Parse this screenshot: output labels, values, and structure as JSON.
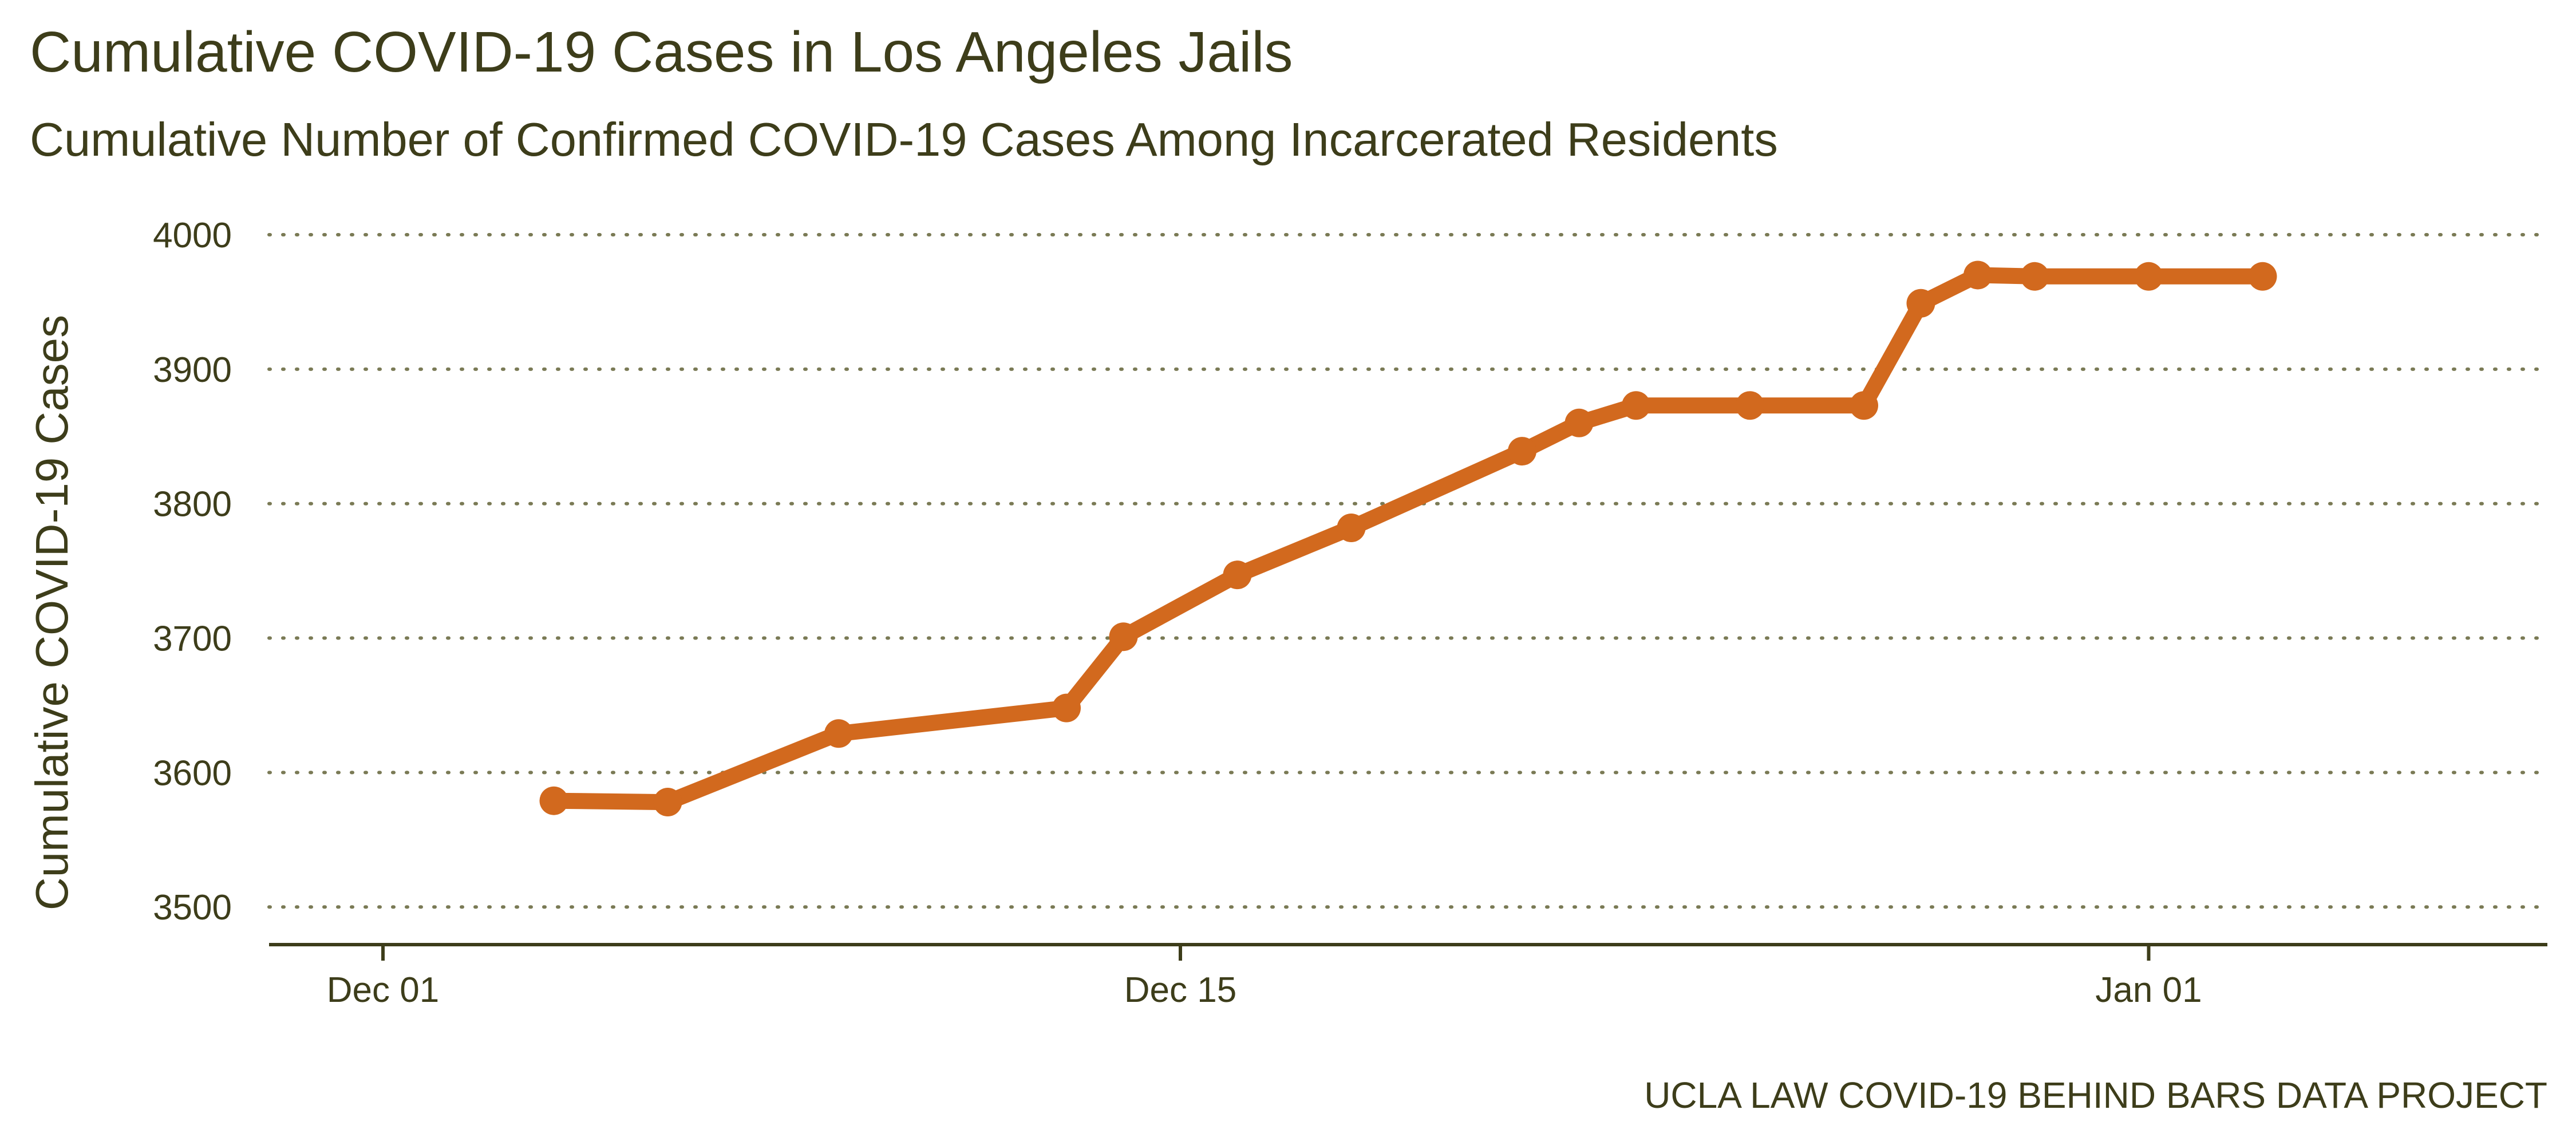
{
  "colors": {
    "text": "#3d3d1a",
    "line": "#d2691e",
    "grid": "#7a7a55",
    "axis": "#3d3d1a",
    "background": "#ffffff"
  },
  "caption": "UCLA LAW COVID-19 BEHIND BARS DATA PROJECT",
  "chart_data": {
    "type": "line",
    "title": "Cumulative COVID-19 Cases in Los Angeles Jails",
    "subtitle": "Cumulative Number of Confirmed COVID-19 Cases Among Incarcerated Residents",
    "xlabel": "",
    "ylabel": "Cumulative COVID-19 Cases",
    "x_type": "date",
    "xlim": [
      "2020-11-29",
      "2021-01-08"
    ],
    "ylim": [
      3472,
      4000
    ],
    "grid": "horizontal-dotted",
    "x_ticks": [
      {
        "date": "2020-12-01",
        "label": "Dec 01"
      },
      {
        "date": "2020-12-15",
        "label": "Dec 15"
      },
      {
        "date": "2021-01-01",
        "label": "Jan 01"
      }
    ],
    "y_ticks": [
      3500,
      3600,
      3700,
      3800,
      3900,
      4000
    ],
    "series": [
      {
        "name": "",
        "points": [
          {
            "x": "2020-12-04",
            "y": 3579
          },
          {
            "x": "2020-12-06",
            "y": 3578
          },
          {
            "x": "2020-12-09",
            "y": 3629
          },
          {
            "x": "2020-12-13",
            "y": 3648
          },
          {
            "x": "2020-12-14",
            "y": 3701
          },
          {
            "x": "2020-12-16",
            "y": 3747
          },
          {
            "x": "2020-12-18",
            "y": 3782
          },
          {
            "x": "2020-12-21",
            "y": 3839
          },
          {
            "x": "2020-12-22",
            "y": 3860
          },
          {
            "x": "2020-12-23",
            "y": 3873
          },
          {
            "x": "2020-12-25",
            "y": 3873
          },
          {
            "x": "2020-12-27",
            "y": 3873
          },
          {
            "x": "2020-12-28",
            "y": 3949
          },
          {
            "x": "2020-12-29",
            "y": 3970
          },
          {
            "x": "2020-12-30",
            "y": 3969
          },
          {
            "x": "2021-01-01",
            "y": 3969
          },
          {
            "x": "2021-01-03",
            "y": 3969
          }
        ]
      }
    ]
  }
}
